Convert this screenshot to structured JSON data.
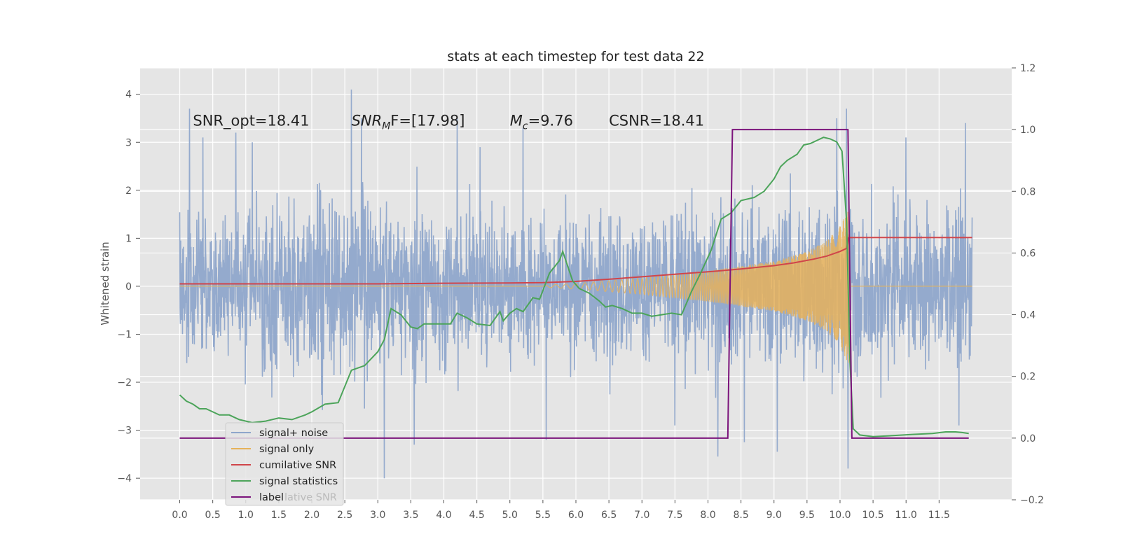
{
  "chart_data": {
    "type": "line",
    "title": "stats at each timestep for test data 22",
    "ylabel": "Whitened strain",
    "xlim": [
      -0.6,
      12.6
    ],
    "ylim": [
      -4.45,
      4.55
    ],
    "y2lim": [
      -0.2,
      1.2
    ],
    "x_ticks": [
      0.0,
      0.5,
      1.0,
      1.5,
      2.0,
      2.5,
      3.0,
      3.5,
      4.0,
      4.5,
      5.0,
      5.5,
      6.0,
      6.5,
      7.0,
      7.5,
      8.0,
      8.5,
      9.0,
      9.5,
      10.0,
      10.5,
      11.0,
      11.5
    ],
    "x_tick_labels": [
      "0.0",
      "0.5",
      "1.0",
      "1.5",
      "2.0",
      "2.5",
      "3.0",
      "3.5",
      "4.0",
      "4.5",
      "5.0",
      "5.5",
      "6.0",
      "6.5",
      "7.0",
      "7.5",
      "8.0",
      "8.5",
      "9.0",
      "9.5",
      "10.0",
      "10.5",
      "11.0",
      "11.5"
    ],
    "y_ticks": [
      4,
      3,
      2,
      1,
      0,
      -1,
      -2,
      -3,
      -4
    ],
    "y_tick_labels": [
      "4",
      "3",
      "2",
      "1",
      "0",
      "−1",
      "−2",
      "−3",
      "−4"
    ],
    "y2_ticks": [
      1.2,
      1.0,
      0.8,
      0.6,
      0.4,
      0.2,
      0.0,
      -0.2
    ],
    "y2_tick_labels": [
      "1.2",
      "1.0",
      "0.8",
      "0.6",
      "0.4",
      "0.2",
      "0.0",
      "−0.2"
    ],
    "grid": true,
    "legend_position": "lower-left",
    "annotations": [
      {
        "prefix": "SNR_opt=18.41",
        "x": 0.2,
        "y": 3.35
      },
      {
        "sym": "SNR",
        "sub": "M",
        "tail": "F=[17.98]",
        "x": 2.6,
        "y": 3.35
      },
      {
        "sym": "M",
        "sub": "c",
        "tail": "=9.76",
        "x": 5.0,
        "y": 3.35
      },
      {
        "prefix": "CSNR=18.41",
        "x": 6.5,
        "y": 3.35
      }
    ],
    "series": [
      {
        "name": "signal+ noise",
        "color": "#8fa6cb",
        "kind": "noise",
        "duration": [
          0.0,
          12.0
        ],
        "envelope": [
          [
            0.0,
            1.9
          ],
          [
            1.0,
            2.2
          ],
          [
            2.5,
            2.4
          ],
          [
            4.0,
            2.2
          ],
          [
            6.0,
            2.0
          ],
          [
            8.0,
            2.1
          ],
          [
            9.0,
            2.3
          ],
          [
            10.1,
            2.5
          ],
          [
            11.0,
            2.1
          ],
          [
            12.0,
            2.0
          ]
        ],
        "peaks": [
          [
            0.15,
            3.7
          ],
          [
            0.35,
            3.1
          ],
          [
            0.85,
            3.2
          ],
          [
            1.1,
            3.0
          ],
          [
            2.6,
            4.1
          ],
          [
            2.75,
            3.5
          ],
          [
            3.1,
            -4.0
          ],
          [
            3.55,
            -3.3
          ],
          [
            4.2,
            3.5
          ],
          [
            4.55,
            2.9
          ],
          [
            5.2,
            3.3
          ],
          [
            5.55,
            -3.2
          ],
          [
            6.0,
            1.3
          ],
          [
            7.5,
            -2.9
          ],
          [
            8.15,
            -3.55
          ],
          [
            8.55,
            -3.25
          ],
          [
            9.05,
            -3.45
          ],
          [
            9.95,
            3.5
          ],
          [
            10.1,
            3.7
          ],
          [
            10.12,
            -3.8
          ],
          [
            11.0,
            3.1
          ],
          [
            11.9,
            3.4
          ],
          [
            11.8,
            -2.9
          ]
        ]
      },
      {
        "name": "signal only",
        "color": "#e6b25a",
        "kind": "chirp",
        "chirp_envelope": [
          [
            5.5,
            0.02
          ],
          [
            6.0,
            0.06
          ],
          [
            7.0,
            0.17
          ],
          [
            8.0,
            0.32
          ],
          [
            8.5,
            0.42
          ],
          [
            9.0,
            0.52
          ],
          [
            9.5,
            0.72
          ],
          [
            9.8,
            0.95
          ],
          [
            10.0,
            1.25
          ],
          [
            10.1,
            1.55
          ],
          [
            10.13,
            1.6
          ],
          [
            10.16,
            0.0
          ]
        ]
      },
      {
        "name": "cumilative SNR",
        "color": "#d0454a",
        "axis": "y2",
        "x": [
          0.0,
          1.0,
          2.0,
          3.0,
          4.0,
          5.0,
          5.5,
          6.0,
          6.5,
          7.0,
          7.5,
          8.0,
          8.5,
          9.0,
          9.3,
          9.6,
          9.8,
          10.0,
          10.1,
          10.13,
          10.2,
          11.0,
          12.0
        ],
        "y": [
          0.5,
          0.5,
          0.5,
          0.5,
          0.502,
          0.503,
          0.504,
          0.508,
          0.515,
          0.523,
          0.531,
          0.539,
          0.548,
          0.559,
          0.568,
          0.58,
          0.59,
          0.605,
          0.615,
          0.65,
          0.65,
          0.65,
          0.65
        ]
      },
      {
        "name": "signal statistics",
        "color": "#4ca45a",
        "axis": "y2",
        "x": [
          0.0,
          0.1,
          0.2,
          0.3,
          0.4,
          0.5,
          0.6,
          0.75,
          0.9,
          1.1,
          1.3,
          1.5,
          1.7,
          1.9,
          2.0,
          2.2,
          2.4,
          2.6,
          2.8,
          3.0,
          3.1,
          3.2,
          3.35,
          3.5,
          3.6,
          3.7,
          3.9,
          4.1,
          4.2,
          4.35,
          4.5,
          4.7,
          4.85,
          4.9,
          5.0,
          5.1,
          5.2,
          5.35,
          5.45,
          5.6,
          5.75,
          5.8,
          5.95,
          6.05,
          6.2,
          6.35,
          6.45,
          6.55,
          6.7,
          6.85,
          7.0,
          7.15,
          7.3,
          7.45,
          7.6,
          7.75,
          7.9,
          8.05,
          8.2,
          8.35,
          8.5,
          8.7,
          8.85,
          9.0,
          9.1,
          9.2,
          9.35,
          9.45,
          9.55,
          9.65,
          9.75,
          9.85,
          9.95,
          10.03,
          10.1,
          10.15,
          10.2,
          10.3,
          10.5,
          10.8,
          11.1,
          11.4,
          11.6,
          11.75,
          11.85,
          11.95
        ],
        "y": [
          0.14,
          0.12,
          0.11,
          0.095,
          0.095,
          0.085,
          0.075,
          0.075,
          0.06,
          0.05,
          0.055,
          0.065,
          0.06,
          0.075,
          0.085,
          0.11,
          0.115,
          0.22,
          0.235,
          0.28,
          0.32,
          0.42,
          0.4,
          0.36,
          0.355,
          0.37,
          0.37,
          0.37,
          0.405,
          0.39,
          0.37,
          0.365,
          0.41,
          0.38,
          0.405,
          0.42,
          0.41,
          0.455,
          0.45,
          0.535,
          0.575,
          0.605,
          0.51,
          0.485,
          0.47,
          0.445,
          0.425,
          0.43,
          0.42,
          0.405,
          0.405,
          0.395,
          0.4,
          0.405,
          0.4,
          0.475,
          0.54,
          0.61,
          0.71,
          0.73,
          0.77,
          0.78,
          0.8,
          0.84,
          0.88,
          0.9,
          0.92,
          0.95,
          0.955,
          0.965,
          0.975,
          0.97,
          0.96,
          0.93,
          0.7,
          0.25,
          0.03,
          0.01,
          0.005,
          0.008,
          0.012,
          0.015,
          0.02,
          0.02,
          0.018,
          0.015
        ]
      },
      {
        "name": "label",
        "color": "#7b137b",
        "axis": "y2",
        "x": [
          0.0,
          8.3,
          8.37,
          10.12,
          10.18,
          11.95
        ],
        "y": [
          0.0,
          0.0,
          1.0,
          1.0,
          0.0,
          0.0
        ]
      }
    ],
    "legend_ghost_text": "lative SNR"
  }
}
